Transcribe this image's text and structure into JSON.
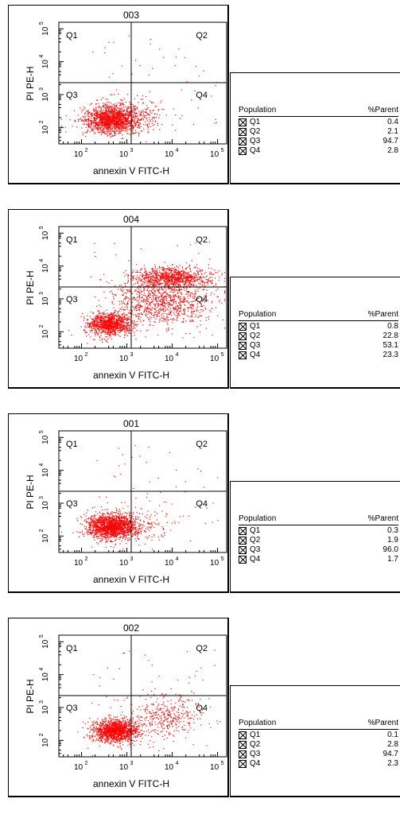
{
  "chart_data": [
    {
      "type": "scatter",
      "title": "003",
      "xlabel": "annexin V FITC-H",
      "ylabel": "PI PE-H",
      "x_scale": "log",
      "y_scale": "log",
      "x_ticks": [
        {
          "base": "10",
          "exp": "2"
        },
        {
          "base": "10",
          "exp": "3"
        },
        {
          "base": "10",
          "exp": "4"
        },
        {
          "base": "10",
          "exp": "5"
        }
      ],
      "y_ticks": [
        {
          "base": "10",
          "exp": "2"
        },
        {
          "base": "10",
          "exp": "3"
        },
        {
          "base": "10",
          "exp": "4"
        },
        {
          "base": "10",
          "exp": "5"
        }
      ],
      "quadrant_labels": [
        "Q1",
        "Q2",
        "Q3",
        "Q4"
      ],
      "dot_color": "#ff0000",
      "table": {
        "col_population": "Population",
        "col_parent": "%Parent",
        "rows": [
          {
            "name": "Q1",
            "value": "0.4"
          },
          {
            "name": "Q2",
            "value": "2.1"
          },
          {
            "name": "Q3",
            "value": "94.7"
          },
          {
            "name": "Q4",
            "value": "2.8"
          }
        ]
      }
    },
    {
      "type": "scatter",
      "title": "004",
      "xlabel": "annexin V FITC-H",
      "ylabel": "PI PE-H",
      "x_scale": "log",
      "y_scale": "log",
      "x_ticks": [
        {
          "base": "10",
          "exp": "2"
        },
        {
          "base": "10",
          "exp": "3"
        },
        {
          "base": "10",
          "exp": "4"
        },
        {
          "base": "10",
          "exp": "5"
        }
      ],
      "y_ticks": [
        {
          "base": "10",
          "exp": "2"
        },
        {
          "base": "10",
          "exp": "3"
        },
        {
          "base": "10",
          "exp": "4"
        },
        {
          "base": "10",
          "exp": "5"
        }
      ],
      "quadrant_labels": [
        "Q1",
        "Q2",
        "Q3",
        "Q4"
      ],
      "dot_color": "#ff0000",
      "table": {
        "col_population": "Population",
        "col_parent": "%Parent",
        "rows": [
          {
            "name": "Q1",
            "value": "0.8"
          },
          {
            "name": "Q2",
            "value": "22.8"
          },
          {
            "name": "Q3",
            "value": "53.1"
          },
          {
            "name": "Q4",
            "value": "23.3"
          }
        ]
      }
    },
    {
      "type": "scatter",
      "title": "001",
      "xlabel": "annexin V FITC-H",
      "ylabel": "PI PE-H",
      "x_scale": "log",
      "y_scale": "log",
      "x_ticks": [
        {
          "base": "10",
          "exp": "2"
        },
        {
          "base": "10",
          "exp": "3"
        },
        {
          "base": "10",
          "exp": "4"
        },
        {
          "base": "10",
          "exp": "5"
        }
      ],
      "y_ticks": [
        {
          "base": "10",
          "exp": "2"
        },
        {
          "base": "10",
          "exp": "3"
        },
        {
          "base": "10",
          "exp": "4"
        },
        {
          "base": "10",
          "exp": "5"
        }
      ],
      "quadrant_labels": [
        "Q1",
        "Q2",
        "Q3",
        "Q4"
      ],
      "dot_color": "#ff0000",
      "table": {
        "col_population": "Population",
        "col_parent": "%Parent",
        "rows": [
          {
            "name": "Q1",
            "value": "0.3"
          },
          {
            "name": "Q2",
            "value": "1.9"
          },
          {
            "name": "Q3",
            "value": "96.0"
          },
          {
            "name": "Q4",
            "value": "1.7"
          }
        ]
      }
    },
    {
      "type": "scatter",
      "title": "002",
      "xlabel": "annexin V FITC-H",
      "ylabel": "PI PE-H",
      "x_scale": "log",
      "y_scale": "log",
      "x_ticks": [
        {
          "base": "10",
          "exp": "2"
        },
        {
          "base": "10",
          "exp": "3"
        },
        {
          "base": "10",
          "exp": "4"
        },
        {
          "base": "10",
          "exp": "5"
        }
      ],
      "y_ticks": [
        {
          "base": "10",
          "exp": "2"
        },
        {
          "base": "10",
          "exp": "3"
        },
        {
          "base": "10",
          "exp": "4"
        },
        {
          "base": "10",
          "exp": "5"
        }
      ],
      "quadrant_labels": [
        "Q1",
        "Q2",
        "Q3",
        "Q4"
      ],
      "dot_color": "#ff0000",
      "table": {
        "col_population": "Population",
        "col_parent": "%Parent",
        "rows": [
          {
            "name": "Q1",
            "value": "0.1"
          },
          {
            "name": "Q2",
            "value": "2.8"
          },
          {
            "name": "Q3",
            "value": "94.7"
          },
          {
            "name": "Q4",
            "value": "2.3"
          }
        ]
      }
    }
  ]
}
